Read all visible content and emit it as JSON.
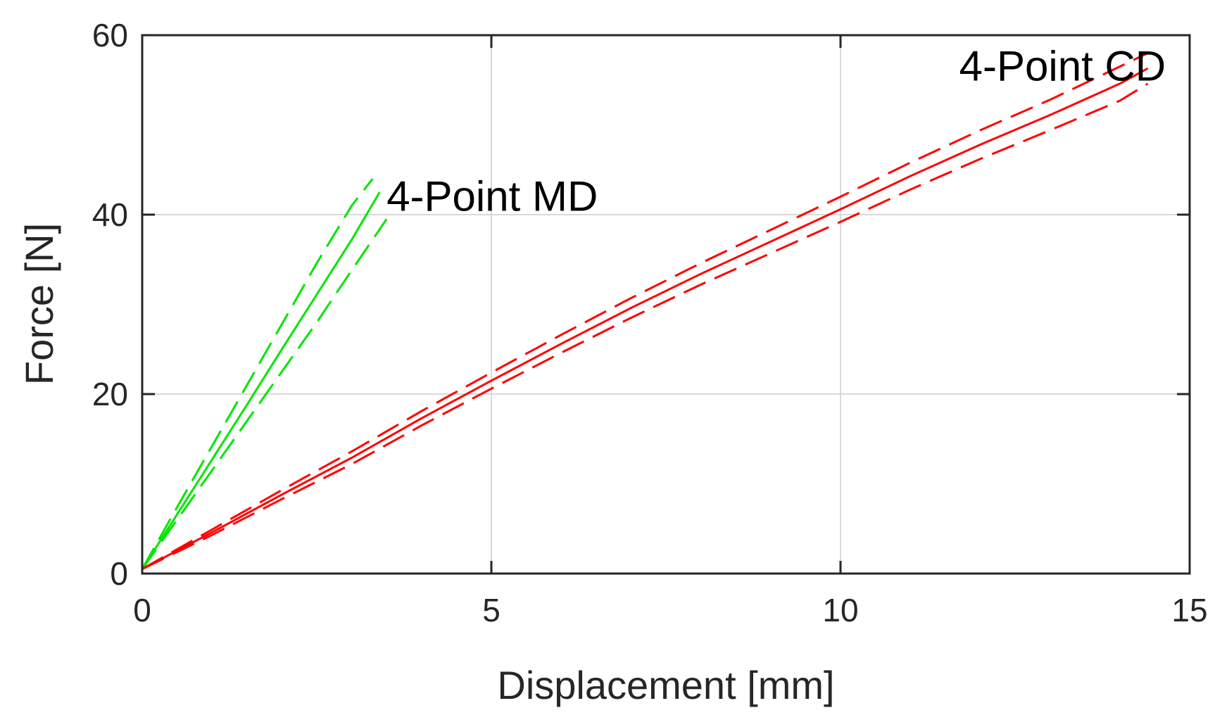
{
  "chart_data": {
    "type": "line",
    "title": "",
    "xlabel": "Displacement [mm]",
    "ylabel": "Force [N]",
    "xlim": [
      0,
      15
    ],
    "ylim": [
      0,
      60
    ],
    "xticks": [
      0,
      5,
      10,
      15
    ],
    "yticks": [
      0,
      20,
      40,
      60
    ],
    "grid": true,
    "annotations": [
      {
        "text": "4-Point MD",
        "x": 3.5,
        "y": 42
      },
      {
        "text": "4-Point CD",
        "x": 11.7,
        "y": 56.5
      }
    ],
    "colors": {
      "md": "#00e600",
      "cd": "#ff0000"
    },
    "series": [
      {
        "group": "md",
        "style": "solid",
        "x": [
          0,
          0.5,
          1.0,
          1.5,
          2.0,
          2.5,
          3.0,
          3.4
        ],
        "y": [
          0.5,
          6.6,
          12.7,
          18.8,
          25.0,
          31.1,
          37.2,
          42.5
        ]
      },
      {
        "group": "md",
        "style": "dashed",
        "x": [
          0,
          0.5,
          1.0,
          1.5,
          2.0,
          2.5,
          3.0,
          3.3
        ],
        "y": [
          0.5,
          7.4,
          14.2,
          21.0,
          27.8,
          34.6,
          41.0,
          44.0
        ]
      },
      {
        "group": "md",
        "style": "dashed",
        "x": [
          0,
          0.5,
          1.0,
          1.5,
          2.0,
          2.5,
          3.0,
          3.5
        ],
        "y": [
          0.5,
          6.0,
          11.5,
          17.0,
          22.5,
          28.0,
          33.8,
          39.5
        ]
      },
      {
        "group": "cd",
        "style": "solid",
        "x": [
          0,
          1,
          2,
          3,
          4,
          5,
          6,
          7,
          8,
          9,
          10,
          11,
          12,
          13,
          14,
          14.4
        ],
        "y": [
          0.5,
          4.6,
          8.8,
          12.9,
          17.3,
          21.5,
          25.6,
          29.6,
          33.4,
          37.0,
          40.6,
          44.3,
          47.8,
          51.1,
          54.6,
          56.3
        ]
      },
      {
        "group": "cd",
        "style": "dashed",
        "x": [
          0,
          1,
          2,
          3,
          4,
          5,
          6,
          7,
          8,
          9,
          10,
          11,
          12,
          13,
          14,
          14.4
        ],
        "y": [
          0.5,
          4.9,
          9.3,
          13.6,
          18.1,
          22.4,
          26.6,
          30.7,
          34.6,
          38.3,
          42.0,
          45.8,
          49.4,
          52.8,
          56.5,
          58.0
        ]
      },
      {
        "group": "cd",
        "style": "dashed",
        "x": [
          0,
          1,
          2,
          3,
          4,
          5,
          6,
          7,
          8,
          9,
          10,
          11,
          12,
          13,
          14,
          14.4
        ],
        "y": [
          0.5,
          4.3,
          8.3,
          12.2,
          16.5,
          20.6,
          24.6,
          28.5,
          32.2,
          35.7,
          39.2,
          42.8,
          46.2,
          49.4,
          52.7,
          54.6
        ]
      }
    ]
  }
}
